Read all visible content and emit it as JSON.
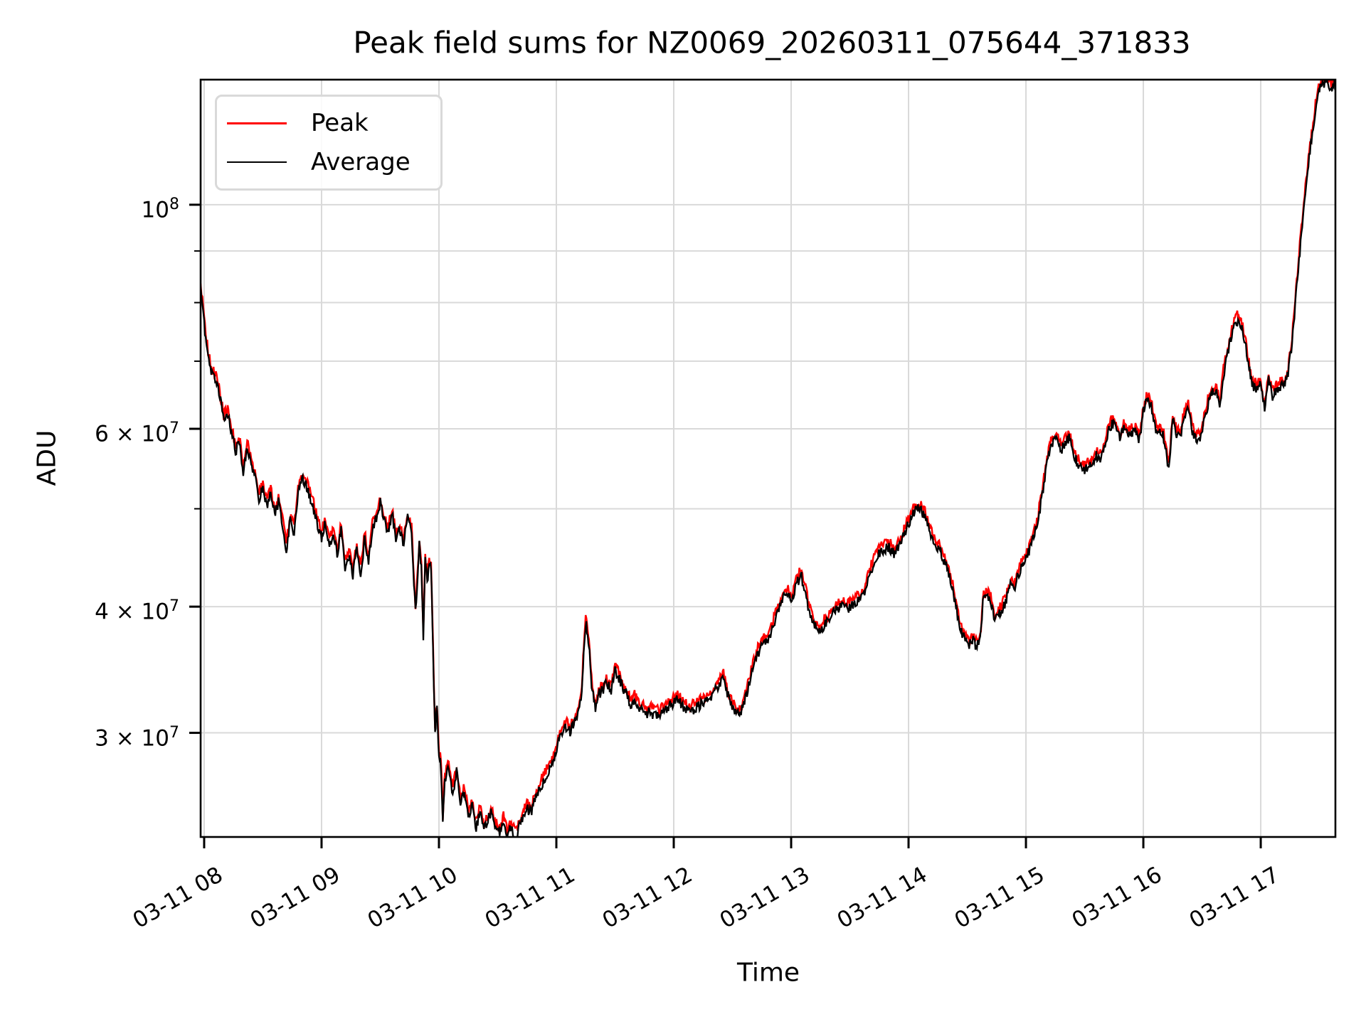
{
  "figure": {
    "title": "Peak field sums for NZ0069_20260311_075644_371833",
    "background": "#ffffff"
  },
  "axes": {
    "xlabel": "Time",
    "ylabel": "ADU"
  },
  "legend": {
    "items": [
      {
        "label": "Peak",
        "color": "#ff0000"
      },
      {
        "label": "Average",
        "color": "#000000"
      }
    ]
  },
  "chart_data": {
    "type": "line",
    "title": "Peak field sums for NZ0069_20260311_075644_371833",
    "xlabel": "Time",
    "ylabel": "ADU",
    "grid": true,
    "legend_position": "upper left",
    "x_axis": {
      "kind": "time",
      "lim_hours": [
        7.97,
        17.636
      ],
      "ticks": [
        {
          "hour": 8,
          "label": "03-11 08"
        },
        {
          "hour": 9,
          "label": "03-11 09"
        },
        {
          "hour": 10,
          "label": "03-11 10"
        },
        {
          "hour": 11,
          "label": "03-11 11"
        },
        {
          "hour": 12,
          "label": "03-11 12"
        },
        {
          "hour": 13,
          "label": "03-11 13"
        },
        {
          "hour": 14,
          "label": "03-11 14"
        },
        {
          "hour": 15,
          "label": "03-11 15"
        },
        {
          "hour": 16,
          "label": "03-11 16"
        },
        {
          "hour": 17,
          "label": "03-11 17"
        }
      ]
    },
    "y_axis": {
      "scale": "log",
      "lim": [
        23660000,
        133000000
      ],
      "labeled_ticks": [
        {
          "value": 100000000,
          "text": "10",
          "sup": "8"
        },
        {
          "value": 60000000,
          "text": "6 × 10",
          "sup": "7"
        },
        {
          "value": 40000000,
          "text": "4 × 10",
          "sup": "7"
        },
        {
          "value": 30000000,
          "text": "3 × 10",
          "sup": "7"
        }
      ],
      "minor_tick_values": [
        90000000,
        80000000,
        70000000,
        50000000
      ],
      "grid_values": [
        100000000,
        90000000,
        80000000,
        70000000,
        60000000,
        50000000,
        40000000,
        30000000
      ]
    },
    "value_unit": 10000000,
    "series": [
      {
        "name": "Peak",
        "color": "#ff0000",
        "derived_from": "Average",
        "ratio": 1.012
      },
      {
        "name": "Average",
        "color": "#000000",
        "points": [
          [
            7.97,
            8.32
          ],
          [
            8.0,
            7.6
          ],
          [
            8.033,
            7.08
          ],
          [
            8.067,
            6.78
          ],
          [
            8.1,
            6.7
          ],
          [
            8.133,
            6.45
          ],
          [
            8.167,
            6.12
          ],
          [
            8.2,
            6.22
          ],
          [
            8.233,
            5.95
          ],
          [
            8.267,
            5.7
          ],
          [
            8.3,
            5.82
          ],
          [
            8.333,
            5.45
          ],
          [
            8.367,
            5.78
          ],
          [
            8.4,
            5.52
          ],
          [
            8.433,
            5.4
          ],
          [
            8.467,
            5.12
          ],
          [
            8.5,
            5.26
          ],
          [
            8.533,
            5.04
          ],
          [
            8.567,
            5.16
          ],
          [
            8.6,
            4.95
          ],
          [
            8.633,
            5.07
          ],
          [
            8.667,
            4.83
          ],
          [
            8.7,
            4.55
          ],
          [
            8.733,
            4.87
          ],
          [
            8.767,
            4.73
          ],
          [
            8.8,
            5.2
          ],
          [
            8.833,
            5.36
          ],
          [
            8.867,
            5.28
          ],
          [
            8.9,
            5.15
          ],
          [
            8.933,
            5.0
          ],
          [
            8.967,
            4.82
          ],
          [
            9.0,
            4.68
          ],
          [
            9.033,
            4.85
          ],
          [
            9.067,
            4.6
          ],
          [
            9.1,
            4.73
          ],
          [
            9.133,
            4.5
          ],
          [
            9.167,
            4.78
          ],
          [
            9.2,
            4.37
          ],
          [
            9.233,
            4.5
          ],
          [
            9.267,
            4.3
          ],
          [
            9.3,
            4.56
          ],
          [
            9.333,
            4.3
          ],
          [
            9.367,
            4.67
          ],
          [
            9.4,
            4.45
          ],
          [
            9.433,
            4.78
          ],
          [
            9.467,
            4.9
          ],
          [
            9.5,
            5.07
          ],
          [
            9.533,
            4.87
          ],
          [
            9.567,
            4.73
          ],
          [
            9.6,
            4.95
          ],
          [
            9.633,
            4.68
          ],
          [
            9.667,
            4.78
          ],
          [
            9.7,
            4.62
          ],
          [
            9.733,
            4.9
          ],
          [
            9.767,
            4.73
          ],
          [
            9.8,
            3.95
          ],
          [
            9.833,
            4.6
          ],
          [
            9.85,
            4.36
          ],
          [
            9.867,
            3.72
          ],
          [
            9.883,
            4.45
          ],
          [
            9.9,
            4.25
          ],
          [
            9.917,
            4.4
          ],
          [
            9.933,
            4.38
          ],
          [
            9.95,
            3.6
          ],
          [
            9.967,
            3.0
          ],
          [
            9.983,
            3.18
          ],
          [
            10.0,
            2.85
          ],
          [
            10.017,
            2.78
          ],
          [
            10.033,
            2.45
          ],
          [
            10.05,
            2.7
          ],
          [
            10.083,
            2.78
          ],
          [
            10.117,
            2.6
          ],
          [
            10.15,
            2.75
          ],
          [
            10.183,
            2.55
          ],
          [
            10.217,
            2.62
          ],
          [
            10.25,
            2.48
          ],
          [
            10.283,
            2.55
          ],
          [
            10.317,
            2.42
          ],
          [
            10.35,
            2.5
          ],
          [
            10.383,
            2.4
          ],
          [
            10.417,
            2.46
          ],
          [
            10.45,
            2.52
          ],
          [
            10.483,
            2.42
          ],
          [
            10.517,
            2.38
          ],
          [
            10.55,
            2.45
          ],
          [
            10.583,
            2.37
          ],
          [
            10.617,
            2.43
          ],
          [
            10.65,
            2.36
          ],
          [
            10.683,
            2.42
          ],
          [
            10.717,
            2.48
          ],
          [
            10.75,
            2.53
          ],
          [
            10.783,
            2.5
          ],
          [
            10.817,
            2.57
          ],
          [
            10.85,
            2.63
          ],
          [
            10.883,
            2.68
          ],
          [
            10.917,
            2.73
          ],
          [
            10.95,
            2.76
          ],
          [
            10.983,
            2.83
          ],
          [
            11.017,
            2.93
          ],
          [
            11.05,
            3.0
          ],
          [
            11.083,
            3.04
          ],
          [
            11.117,
            3.01
          ],
          [
            11.15,
            3.06
          ],
          [
            11.183,
            3.12
          ],
          [
            11.217,
            3.3
          ],
          [
            11.233,
            3.6
          ],
          [
            11.25,
            3.85
          ],
          [
            11.267,
            3.78
          ],
          [
            11.283,
            3.6
          ],
          [
            11.3,
            3.35
          ],
          [
            11.333,
            3.18
          ],
          [
            11.367,
            3.28
          ],
          [
            11.4,
            3.32
          ],
          [
            11.433,
            3.36
          ],
          [
            11.467,
            3.3
          ],
          [
            11.5,
            3.46
          ],
          [
            11.533,
            3.4
          ],
          [
            11.567,
            3.33
          ],
          [
            11.6,
            3.27
          ],
          [
            11.633,
            3.2
          ],
          [
            11.667,
            3.23
          ],
          [
            11.7,
            3.18
          ],
          [
            11.733,
            3.16
          ],
          [
            11.767,
            3.13
          ],
          [
            11.8,
            3.15
          ],
          [
            11.833,
            3.12
          ],
          [
            11.883,
            3.13
          ],
          [
            11.933,
            3.17
          ],
          [
            11.983,
            3.2
          ],
          [
            12.033,
            3.24
          ],
          [
            12.083,
            3.18
          ],
          [
            12.133,
            3.15
          ],
          [
            12.183,
            3.17
          ],
          [
            12.233,
            3.2
          ],
          [
            12.283,
            3.23
          ],
          [
            12.333,
            3.28
          ],
          [
            12.383,
            3.33
          ],
          [
            12.417,
            3.42
          ],
          [
            12.45,
            3.3
          ],
          [
            12.483,
            3.2
          ],
          [
            12.533,
            3.15
          ],
          [
            12.567,
            3.12
          ],
          [
            12.617,
            3.27
          ],
          [
            12.667,
            3.45
          ],
          [
            12.717,
            3.6
          ],
          [
            12.767,
            3.68
          ],
          [
            12.817,
            3.73
          ],
          [
            12.867,
            3.9
          ],
          [
            12.917,
            4.05
          ],
          [
            12.967,
            4.12
          ],
          [
            13.0,
            4.06
          ],
          [
            13.05,
            4.22
          ],
          [
            13.083,
            4.3
          ],
          [
            13.117,
            4.17
          ],
          [
            13.15,
            3.96
          ],
          [
            13.2,
            3.83
          ],
          [
            13.233,
            3.77
          ],
          [
            13.283,
            3.84
          ],
          [
            13.333,
            3.9
          ],
          [
            13.383,
            3.97
          ],
          [
            13.433,
            4.0
          ],
          [
            13.483,
            3.98
          ],
          [
            13.533,
            4.02
          ],
          [
            13.583,
            4.06
          ],
          [
            13.633,
            4.15
          ],
          [
            13.683,
            4.35
          ],
          [
            13.733,
            4.5
          ],
          [
            13.783,
            4.55
          ],
          [
            13.833,
            4.58
          ],
          [
            13.883,
            4.5
          ],
          [
            13.933,
            4.63
          ],
          [
            13.983,
            4.78
          ],
          [
            14.033,
            4.92
          ],
          [
            14.067,
            5.0
          ],
          [
            14.1,
            4.98
          ],
          [
            14.133,
            4.93
          ],
          [
            14.183,
            4.75
          ],
          [
            14.233,
            4.57
          ],
          [
            14.267,
            4.55
          ],
          [
            14.3,
            4.45
          ],
          [
            14.35,
            4.3
          ],
          [
            14.383,
            4.12
          ],
          [
            14.417,
            3.93
          ],
          [
            14.45,
            3.77
          ],
          [
            14.483,
            3.7
          ],
          [
            14.517,
            3.67
          ],
          [
            14.55,
            3.7
          ],
          [
            14.583,
            3.65
          ],
          [
            14.617,
            3.78
          ],
          [
            14.633,
            4.05
          ],
          [
            14.667,
            4.1
          ],
          [
            14.7,
            4.06
          ],
          [
            14.733,
            3.88
          ],
          [
            14.767,
            3.92
          ],
          [
            14.8,
            3.98
          ],
          [
            14.833,
            4.06
          ],
          [
            14.867,
            4.2
          ],
          [
            14.9,
            4.14
          ],
          [
            14.933,
            4.3
          ],
          [
            14.967,
            4.4
          ],
          [
            15.0,
            4.46
          ],
          [
            15.033,
            4.56
          ],
          [
            15.067,
            4.7
          ],
          [
            15.1,
            4.86
          ],
          [
            15.133,
            5.1
          ],
          [
            15.167,
            5.45
          ],
          [
            15.2,
            5.7
          ],
          [
            15.233,
            5.85
          ],
          [
            15.267,
            5.9
          ],
          [
            15.3,
            5.72
          ],
          [
            15.333,
            5.8
          ],
          [
            15.367,
            5.88
          ],
          [
            15.4,
            5.7
          ],
          [
            15.433,
            5.56
          ],
          [
            15.467,
            5.48
          ],
          [
            15.5,
            5.45
          ],
          [
            15.533,
            5.5
          ],
          [
            15.567,
            5.53
          ],
          [
            15.6,
            5.65
          ],
          [
            15.633,
            5.6
          ],
          [
            15.667,
            5.72
          ],
          [
            15.7,
            5.95
          ],
          [
            15.733,
            6.08
          ],
          [
            15.767,
            6.0
          ],
          [
            15.8,
            5.85
          ],
          [
            15.833,
            6.0
          ],
          [
            15.867,
            5.9
          ],
          [
            15.9,
            5.93
          ],
          [
            15.933,
            5.95
          ],
          [
            15.967,
            5.85
          ],
          [
            16.0,
            6.25
          ],
          [
            16.033,
            6.4
          ],
          [
            16.067,
            6.33
          ],
          [
            16.1,
            6.02
          ],
          [
            16.133,
            5.93
          ],
          [
            16.167,
            5.95
          ],
          [
            16.2,
            5.6
          ],
          [
            16.217,
            5.5
          ],
          [
            16.25,
            6.1
          ],
          [
            16.283,
            5.93
          ],
          [
            16.317,
            5.9
          ],
          [
            16.35,
            6.2
          ],
          [
            16.383,
            6.28
          ],
          [
            16.417,
            5.97
          ],
          [
            16.45,
            5.86
          ],
          [
            16.483,
            5.9
          ],
          [
            16.517,
            6.1
          ],
          [
            16.55,
            6.35
          ],
          [
            16.583,
            6.5
          ],
          [
            16.617,
            6.55
          ],
          [
            16.65,
            6.32
          ],
          [
            16.683,
            6.8
          ],
          [
            16.733,
            7.25
          ],
          [
            16.767,
            7.55
          ],
          [
            16.8,
            7.68
          ],
          [
            16.833,
            7.6
          ],
          [
            16.867,
            7.3
          ],
          [
            16.9,
            6.87
          ],
          [
            16.933,
            6.62
          ],
          [
            16.967,
            6.56
          ],
          [
            17.0,
            6.66
          ],
          [
            17.033,
            6.27
          ],
          [
            17.067,
            6.7
          ],
          [
            17.1,
            6.47
          ],
          [
            17.133,
            6.56
          ],
          [
            17.167,
            6.6
          ],
          [
            17.2,
            6.62
          ],
          [
            17.233,
            6.8
          ],
          [
            17.267,
            7.3
          ],
          [
            17.3,
            8.15
          ],
          [
            17.333,
            9.0
          ],
          [
            17.367,
            10.0
          ],
          [
            17.4,
            10.8
          ],
          [
            17.433,
            11.6
          ],
          [
            17.467,
            12.5
          ],
          [
            17.5,
            13.0
          ],
          [
            17.533,
            13.2
          ],
          [
            17.567,
            13.28
          ],
          [
            17.6,
            13.05
          ],
          [
            17.636,
            13.25
          ]
        ]
      }
    ],
    "style": {
      "grid_color": "#d9d9d9",
      "spine_color": "#000000",
      "noise_amp": 0.012,
      "subdivide_hours": 0.008,
      "line_width": 2.3
    }
  }
}
